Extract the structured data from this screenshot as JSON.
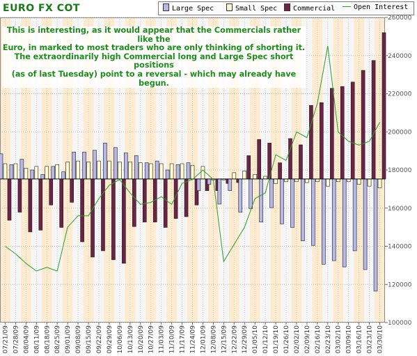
{
  "chart_data": {
    "type": "bar",
    "title": "EURO FX COT",
    "annotation": [
      "This is interesting, as it would appear that the Commercials rather like the",
      "Euro, in marked to most traders who are only thinking of shorting it.",
      "The extraordinarily high Commercial long and Large Spec short positions",
      "(as of last Tuesday) point to a reversal - which may already have begun."
    ],
    "categories": [
      "07/21/09",
      "07/28/09",
      "08/04/09",
      "08/11/09",
      "08/18/09",
      "08/25/09",
      "09/01/09",
      "09/08/09",
      "09/15/09",
      "09/22/09",
      "09/29/09",
      "10/06/09",
      "10/13/09",
      "10/20/09",
      "10/27/09",
      "11/03/09",
      "11/10/09",
      "11/17/09",
      "11/24/09",
      "12/01/09",
      "12/08/09",
      "12/15/09",
      "12/22/09",
      "12/29/09",
      "01/05/10",
      "01/12/10",
      "01/19/10",
      "01/26/10",
      "02/02/10",
      "02/09/10",
      "02/16/10",
      "02/23/10",
      "03/02/10",
      "03/09/10",
      "03/16/10",
      "03/23/10",
      "03/30/10"
    ],
    "series": [
      {
        "name": "Large Spec",
        "color": "#b8b8e6",
        "values": [
          28000,
          16000,
          22000,
          10000,
          5000,
          14000,
          8000,
          30000,
          30000,
          32000,
          40000,
          35000,
          29000,
          26000,
          18000,
          20000,
          10000,
          16000,
          18000,
          -13000,
          -6000,
          -28000,
          -13000,
          -37000,
          -33000,
          -48000,
          -32000,
          -50000,
          -54000,
          -69000,
          -74000,
          -95000,
          -91000,
          -98000,
          -80000,
          -101000,
          -125000
        ]
      },
      {
        "name": "Small Spec",
        "color": "#fffbd4",
        "values": [
          17000,
          17000,
          12000,
          14000,
          14000,
          16000,
          19000,
          20000,
          19000,
          20000,
          20000,
          19000,
          19000,
          18000,
          17000,
          17000,
          17000,
          17000,
          15000,
          14000,
          -1000,
          -1000,
          7000,
          9000,
          5000,
          3000,
          -5000,
          -3000,
          -3000,
          -4000,
          -3000,
          -8000,
          -3000,
          -3000,
          -6000,
          -8000,
          -10000
        ]
      },
      {
        "name": "Commercial",
        "color": "#6b2346",
        "values": [
          -46000,
          -37000,
          -59000,
          -57000,
          -29000,
          -54000,
          -26000,
          -70000,
          -87000,
          -80000,
          -90000,
          -94000,
          -53000,
          -48000,
          -48000,
          -54000,
          -44000,
          -42000,
          -29000,
          -13000,
          -13000,
          -5000,
          -4000,
          26000,
          44000,
          40000,
          18000,
          45000,
          38000,
          82000,
          85000,
          101000,
          103000,
          108000,
          121000,
          132000,
          163000
        ]
      },
      {
        "name": "Open Interest",
        "color": "#2c9a2c",
        "values": [
          140000,
          136000,
          131000,
          127000,
          129000,
          127000,
          150000,
          156000,
          156000,
          165000,
          172000,
          175000,
          168000,
          162000,
          163000,
          166000,
          162000,
          173000,
          175000,
          180000,
          175000,
          132000,
          141000,
          150000,
          165000,
          168000,
          188000,
          185000,
          200000,
          197000,
          215000,
          245000,
          200000,
          195000,
          193000,
          195000,
          205000
        ]
      }
    ],
    "yaxis_bars": {
      "min": -160000,
      "max": 180000
    },
    "yaxis_right": {
      "min": 100000,
      "max": 260000,
      "ticks": [
        100000,
        120000,
        140000,
        160000,
        180000,
        200000,
        220000,
        240000,
        260000
      ],
      "tick_labels": [
        "100000",
        "120000",
        "140000",
        "160000",
        "180000",
        "200000",
        "220000",
        "240000",
        "260000"
      ]
    },
    "grid": true,
    "legend": "top-right"
  }
}
